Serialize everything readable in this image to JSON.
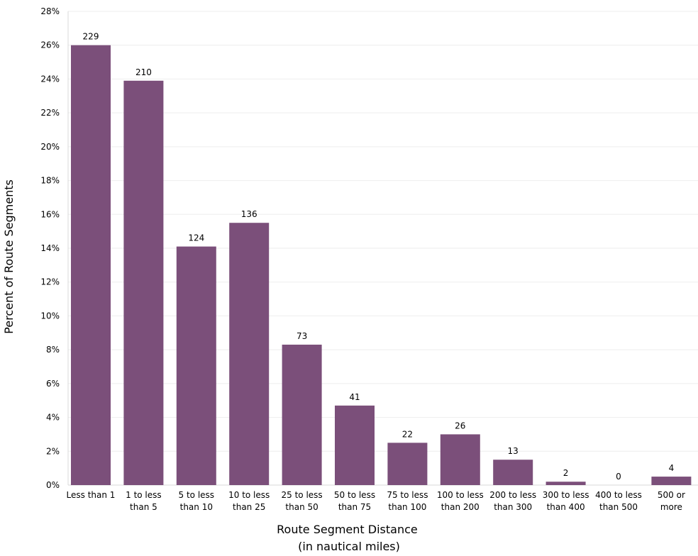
{
  "chart_data": {
    "type": "bar",
    "title": "",
    "xlabel": [
      "Route Segment Distance",
      "(in nautical miles)"
    ],
    "ylabel": "Percent of Route Segments",
    "ylim": [
      0,
      28
    ],
    "y_ticks": [
      "0%",
      "2%",
      "4%",
      "6%",
      "8%",
      "10%",
      "12%",
      "14%",
      "16%",
      "18%",
      "20%",
      "22%",
      "24%",
      "26%",
      "28%"
    ],
    "grid": true,
    "bar_color": "#7B4F7A",
    "categories": [
      [
        "Less than 1"
      ],
      [
        "1 to less",
        "than 5"
      ],
      [
        "5 to less",
        "than 10"
      ],
      [
        "10 to less",
        "than 25"
      ],
      [
        "25 to less",
        "than 50"
      ],
      [
        "50 to less",
        "than 75"
      ],
      [
        "75 to less",
        "than 100"
      ],
      [
        "100 to less",
        "than 200"
      ],
      [
        "200 to less",
        "than 300"
      ],
      [
        "300 to less",
        "than 400"
      ],
      [
        "400 to less",
        "than 500"
      ],
      [
        "500 or",
        "more"
      ]
    ],
    "values": [
      26.0,
      23.9,
      14.1,
      15.5,
      8.3,
      4.7,
      2.5,
      3.0,
      1.5,
      0.2,
      0.0,
      0.5
    ],
    "data_labels": [
      "229",
      "210",
      "124",
      "136",
      "73",
      "41",
      "22",
      "26",
      "13",
      "2",
      "0",
      "4"
    ]
  }
}
